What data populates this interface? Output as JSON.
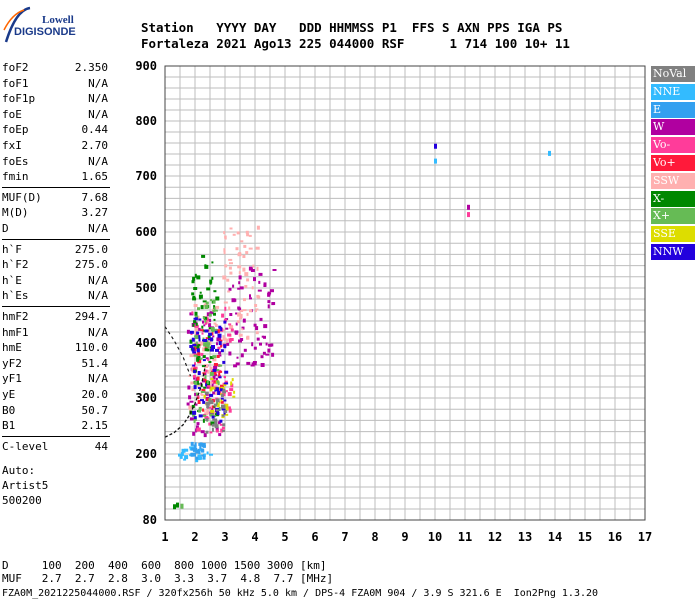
{
  "logo": {
    "brand_top": "Lowell",
    "brand_bottom": "DIGISONDE"
  },
  "header": {
    "line1": "Station   YYYY DAY   DDD HHMMSS P1  FFS S AXN PPS IGA PS",
    "line2": "Fortaleza 2021 Ago13 225 044000 RSF      1 714 100 10+ 11"
  },
  "params": [
    {
      "label": "foF2",
      "value": "2.350"
    },
    {
      "label": "foF1",
      "value": "N/A"
    },
    {
      "label": "foF1p",
      "value": "N/A"
    },
    {
      "label": "foE",
      "value": "N/A"
    },
    {
      "label": "foEp",
      "value": "0.44"
    },
    {
      "label": "fxI",
      "value": "2.70"
    },
    {
      "label": "foEs",
      "value": "N/A"
    },
    {
      "label": "fmin",
      "value": "1.65"
    },
    {
      "label": "MUF(D)",
      "value": "7.68"
    },
    {
      "label": "M(D)",
      "value": "3.27"
    },
    {
      "label": "D",
      "value": "N/A"
    },
    {
      "label": "h`F",
      "value": "275.0"
    },
    {
      "label": "h`F2",
      "value": "275.0"
    },
    {
      "label": "h`E",
      "value": "N/A"
    },
    {
      "label": "h`Es",
      "value": "N/A"
    },
    {
      "label": "hmF2",
      "value": "294.7"
    },
    {
      "label": "hmF1",
      "value": "N/A"
    },
    {
      "label": "hmE",
      "value": "110.0"
    },
    {
      "label": "yF2",
      "value": "51.4"
    },
    {
      "label": "yF1",
      "value": "N/A"
    },
    {
      "label": "yE",
      "value": "20.0"
    },
    {
      "label": "B0",
      "value": "50.7"
    },
    {
      "label": "B1",
      "value": "2.15"
    },
    {
      "label": "C-level",
      "value": "44"
    }
  ],
  "auto": {
    "line1": "Auto:",
    "line2": "Artist5",
    "line3": "500200"
  },
  "legend": [
    {
      "label": "NoVal",
      "color": "#808080"
    },
    {
      "label": "NNE",
      "color": "#33bbff"
    },
    {
      "label": "E",
      "color": "#33a0f0"
    },
    {
      "label": "W",
      "color": "#b000a0"
    },
    {
      "label": "Vo-",
      "color": "#ff3c9a"
    },
    {
      "label": "Vo+",
      "color": "#ff1a3a"
    },
    {
      "label": "SSW",
      "color": "#ffb0b0"
    },
    {
      "label": "X-",
      "color": "#008800"
    },
    {
      "label": "X+",
      "color": "#66bb55"
    },
    {
      "label": "SSE",
      "color": "#dddd00"
    },
    {
      "label": "NNW",
      "color": "#2200dd"
    }
  ],
  "footer": {
    "d_line": "D     100  200  400  600  800 1000 1500 3000 [km]",
    "muf_line": "MUF   2.7  2.7  2.8  3.0  3.3  3.7  4.8  7.7 [MHz]",
    "file_line": "FZA0M_2021225044000.RSF / 320fx256h 50 kHz 5.0 km / DPS-4 FZA0M 904 / 3.9 S 321.6 E  Ion2Png 1.3.20"
  },
  "chart_data": {
    "type": "scatter",
    "xlim": [
      1,
      17
    ],
    "ylim": [
      80,
      900
    ],
    "x_ticks": [
      "1",
      "2",
      "3",
      "4",
      "5",
      "6",
      "7",
      "8",
      "9",
      "10",
      "11",
      "12",
      "13",
      "14",
      "15",
      "16",
      "17"
    ],
    "y_ticks": [
      "80",
      "200",
      "300",
      "400",
      "500",
      "600",
      "700",
      "800",
      "900"
    ],
    "x_unit": "MHz",
    "y_unit": "km",
    "grid": true,
    "legend_position": "right",
    "isolated_echoes": [
      {
        "x": 1.3,
        "y": 105,
        "cls": "X-"
      },
      {
        "x": 1.4,
        "y": 108,
        "cls": "X-"
      },
      {
        "x": 1.55,
        "y": 106,
        "cls": "X+"
      },
      {
        "x": 10.0,
        "y": 755,
        "cls": "NNW"
      },
      {
        "x": 10.0,
        "y": 728,
        "cls": "NNE"
      },
      {
        "x": 11.1,
        "y": 645,
        "cls": "W"
      },
      {
        "x": 11.1,
        "y": 632,
        "cls": "Vo-"
      },
      {
        "x": 13.8,
        "y": 742,
        "cls": "NNE"
      }
    ],
    "echo_clusters": [
      {
        "cls": "NNE",
        "x": [
          1.3,
          2.5
        ],
        "y": [
          188,
          215
        ]
      },
      {
        "cls": "E",
        "x": [
          1.8,
          2.4
        ],
        "y": [
          195,
          225
        ]
      },
      {
        "cls": "W",
        "x": [
          1.7,
          2.8
        ],
        "y": [
          230,
          460
        ]
      },
      {
        "cls": "W",
        "x": [
          3.0,
          4.6
        ],
        "y": [
          360,
          540
        ]
      },
      {
        "cls": "SSW",
        "x": [
          2.9,
          4.1
        ],
        "y": [
          400,
          620
        ]
      },
      {
        "cls": "SSW",
        "x": [
          1.7,
          2.7
        ],
        "y": [
          260,
          480
        ]
      },
      {
        "cls": "Vo-",
        "x": [
          1.8,
          3.2
        ],
        "y": [
          240,
          470
        ]
      },
      {
        "cls": "Vo+",
        "x": [
          1.9,
          2.9
        ],
        "y": [
          280,
          430
        ]
      },
      {
        "cls": "SSE",
        "x": [
          2.2,
          3.3
        ],
        "y": [
          270,
          340
        ]
      },
      {
        "cls": "X-",
        "x": [
          1.8,
          2.7
        ],
        "y": [
          250,
          560
        ]
      },
      {
        "cls": "X+",
        "x": [
          1.9,
          2.8
        ],
        "y": [
          260,
          480
        ]
      },
      {
        "cls": "NNW",
        "x": [
          1.8,
          3.0
        ],
        "y": [
          250,
          450
        ]
      },
      {
        "cls": "NoVal",
        "x": [
          2.3,
          3.0
        ],
        "y": [
          230,
          320
        ]
      }
    ],
    "trace_line": [
      {
        "x": 1.0,
        "y": 230
      },
      {
        "x": 1.3,
        "y": 238
      },
      {
        "x": 1.6,
        "y": 252
      },
      {
        "x": 1.8,
        "y": 268
      },
      {
        "x": 2.0,
        "y": 290
      },
      {
        "x": 2.2,
        "y": 320
      },
      {
        "x": 2.35,
        "y": 360
      }
    ],
    "trace_line2": [
      {
        "x": 1.0,
        "y": 430
      },
      {
        "x": 1.3,
        "y": 405
      },
      {
        "x": 1.6,
        "y": 375
      },
      {
        "x": 1.85,
        "y": 340
      }
    ]
  }
}
